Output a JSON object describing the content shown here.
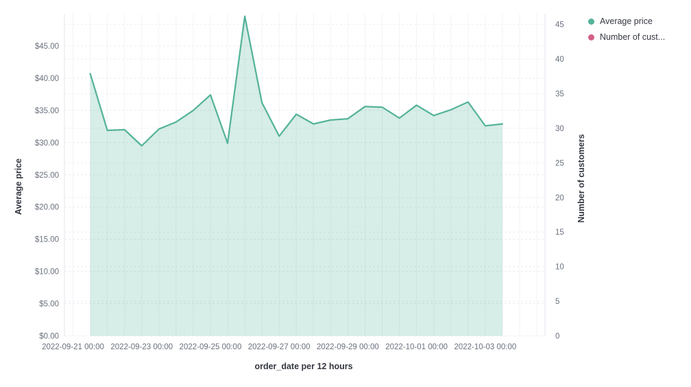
{
  "chart_data": {
    "type": "area",
    "title": "",
    "xlabel": "order_date per 12 hours",
    "x_tick_labels": [
      "2022-09-21 00:00",
      "2022-09-23 00:00",
      "2022-09-25 00:00",
      "2022-09-27 00:00",
      "2022-09-29 00:00",
      "2022-10-01 00:00",
      "2022-10-03 00:00"
    ],
    "left_axis": {
      "title": "Average price",
      "tick_labels": [
        "$0.00",
        "$5.00",
        "$10.00",
        "$15.00",
        "$20.00",
        "$25.00",
        "$30.00",
        "$35.00",
        "$40.00",
        "$45.00"
      ],
      "tick_values": [
        0,
        5,
        10,
        15,
        20,
        25,
        30,
        35,
        40,
        45
      ],
      "max": 50
    },
    "right_axis": {
      "title": "Number of customers",
      "tick_labels": [
        "0",
        "5",
        "10",
        "15",
        "20",
        "25",
        "30",
        "35",
        "40",
        "45"
      ],
      "tick_values": [
        0,
        5,
        10,
        15,
        20,
        25,
        30,
        35,
        40,
        45
      ],
      "max": 46.55
    },
    "legend": [
      {
        "label": "Average price",
        "color": "#54b399"
      },
      {
        "label": "Number of cust...",
        "color": "#d36086"
      }
    ],
    "series": [
      {
        "name": "Average price",
        "axis": "left",
        "color": "#54b399",
        "fill_opacity": 0.23,
        "x": [
          "2022-09-21 12:00",
          "2022-09-22 00:00",
          "2022-09-22 12:00",
          "2022-09-23 00:00",
          "2022-09-23 12:00",
          "2022-09-24 00:00",
          "2022-09-24 12:00",
          "2022-09-25 00:00",
          "2022-09-25 12:00",
          "2022-09-26 00:00",
          "2022-09-26 12:00",
          "2022-09-27 00:00",
          "2022-09-27 12:00",
          "2022-09-28 00:00",
          "2022-09-28 12:00",
          "2022-09-29 00:00",
          "2022-09-29 12:00",
          "2022-09-30 00:00",
          "2022-09-30 12:00",
          "2022-10-01 00:00",
          "2022-10-01 12:00",
          "2022-10-02 00:00",
          "2022-10-02 12:00",
          "2022-10-03 00:00",
          "2022-10-03 12:00"
        ],
        "values": [
          40.7,
          31.9,
          32.0,
          29.5,
          32.1,
          33.2,
          35.0,
          37.4,
          29.9,
          49.6,
          36.2,
          31.0,
          34.4,
          32.9,
          33.5,
          33.7,
          35.6,
          35.5,
          33.8,
          35.8,
          34.2,
          35.1,
          36.3,
          32.6,
          32.9
        ]
      },
      {
        "name": "Number of customers",
        "axis": "right",
        "color": "#d36086",
        "values": []
      }
    ]
  }
}
